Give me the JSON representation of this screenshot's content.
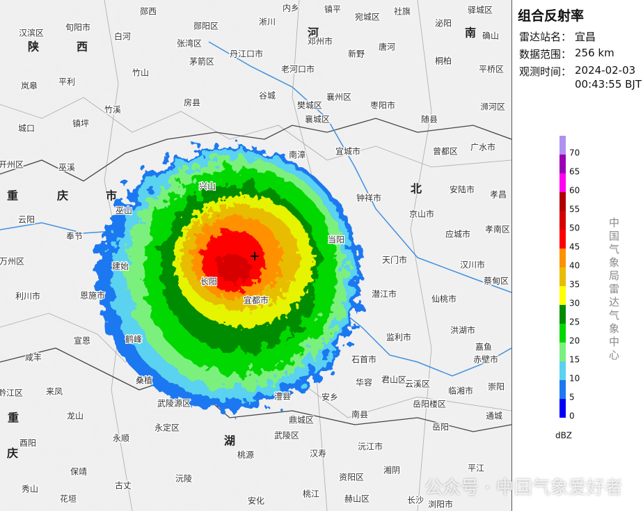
{
  "panel": {
    "title": "组合反射率",
    "station_label": "雷达站名：",
    "station": "宜昌",
    "range_label": "数据范围：",
    "range": "256 km",
    "time_label": "观测时间：",
    "date": "2024-02-03",
    "time": "00:43:55 BJT"
  },
  "colorbar": {
    "ticks": [
      0,
      5,
      10,
      15,
      20,
      25,
      30,
      35,
      40,
      45,
      50,
      55,
      60,
      65,
      70
    ],
    "colors": [
      "#0000f6",
      "#1e78f0",
      "#5ad2f0",
      "#7cf07c",
      "#00d800",
      "#008c00",
      "#ffff00",
      "#e8bc00",
      "#ff9000",
      "#ff0000",
      "#d60000",
      "#b00000",
      "#ff00f0",
      "#9a00b4",
      "#b090f0"
    ],
    "unit": "dBZ"
  },
  "credit": "中国气象局雷达气象中心",
  "watermark": "公众号 · 中国气象爱好者",
  "map": {
    "region_labels": [
      "陕",
      "西",
      "河",
      "南",
      "重",
      "庆",
      "市",
      "北",
      "湖",
      "重",
      "庆"
    ],
    "labels": [
      "郧西",
      "郧阳区",
      "内乡",
      "镇平",
      "宛城区",
      "社旗",
      "驿城区",
      "汉滨区",
      "旬阳市",
      "白河",
      "张湾区",
      "丹江口市",
      "淅川",
      "邓州市",
      "新野",
      "唐河",
      "泌阳",
      "确山",
      "桐柏",
      "茅箭区",
      "竹山",
      "老河口市",
      "平桥区",
      "岚皋",
      "平利",
      "谷城",
      "襄州区",
      "枣阳市",
      "房县",
      "樊城区",
      "浉河区",
      "竹溪",
      "镇坪",
      "襄城区",
      "随县",
      "城口",
      "宜城市",
      "曾都区",
      "广水市",
      "开州区",
      "巫溪",
      "南漳",
      "兴山",
      "钟祥市",
      "安陆市",
      "孝昌",
      "京山市",
      "巫山",
      "云阳",
      "奉节",
      "当阳",
      "应城市",
      "孝南区",
      "万州区",
      "建始",
      "天门市",
      "汉川市",
      "长阳",
      "潜江市",
      "仙桃市",
      "利川市",
      "恩施市",
      "宜都市",
      "蔡甸区",
      "洪湖市",
      "监利市",
      "嘉鱼",
      "赤壁市",
      "宣恩",
      "咸丰",
      "鹤峰",
      "石首市",
      "华容",
      "君山区",
      "云溪区",
      "临湘市",
      "崇阳",
      "黔江区",
      "来凤",
      "桑植",
      "岳阳楼区",
      "澧县",
      "安乡",
      "武陵源区",
      "通城",
      "南县",
      "龙山",
      "永定区",
      "鼎城区",
      "岳阳",
      "酉阳",
      "永顺",
      "武陵区",
      "沅江市",
      "汉寿",
      "桃源",
      "平江",
      "保靖",
      "湘阴",
      "古丈",
      "沅陵",
      "资阳区",
      "秀山",
      "花垣",
      "安化",
      "赫山区",
      "桃江",
      "长沙",
      "浏阳市"
    ]
  }
}
